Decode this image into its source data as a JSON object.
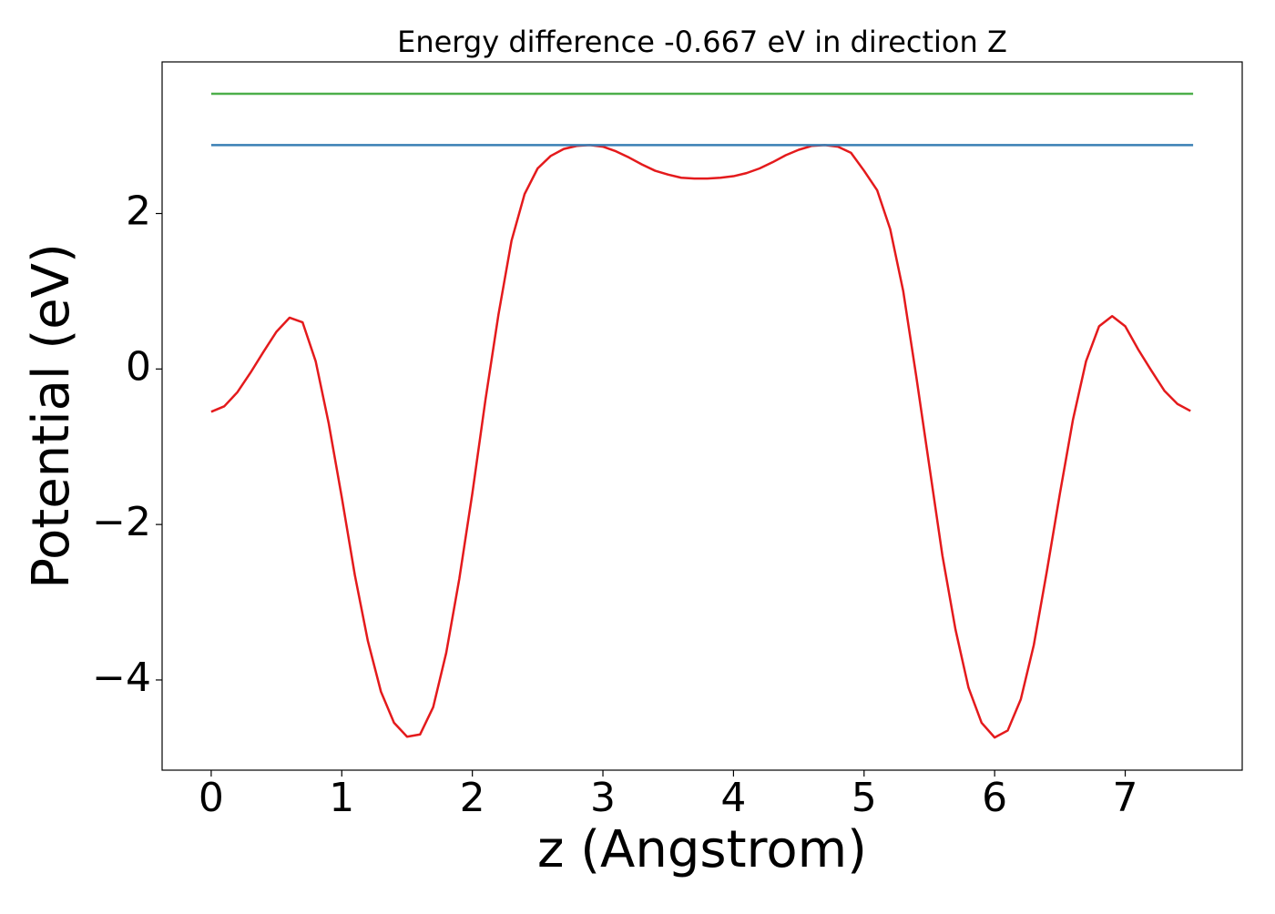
{
  "chart_data": {
    "type": "line",
    "title": "Energy difference -0.667 eV in direction Z",
    "xlabel": "z (Angstrom)",
    "ylabel": "Potential (eV)",
    "xlim": [
      -0.376,
      7.896
    ],
    "ylim": [
      -5.16,
      3.95
    ],
    "xticks": [
      0,
      1,
      2,
      3,
      4,
      5,
      6,
      7
    ],
    "yticks": [
      {
        "value": -4,
        "label": "−4"
      },
      {
        "value": -2,
        "label": "−2"
      },
      0,
      2
    ],
    "series": [
      {
        "color": "#e41a1c",
        "x": [
          0,
          0.1,
          0.2,
          0.3,
          0.4,
          0.5,
          0.6,
          0.7,
          0.8,
          0.9,
          1.0,
          1.1,
          1.2,
          1.3,
          1.4,
          1.5,
          1.6,
          1.7,
          1.8,
          1.9,
          2.0,
          2.1,
          2.2,
          2.3,
          2.4,
          2.5,
          2.6,
          2.7,
          2.8,
          2.9,
          3.0,
          3.1,
          3.2,
          3.3,
          3.4,
          3.5,
          3.6,
          3.7,
          3.8,
          3.9,
          4.0,
          4.1,
          4.2,
          4.3,
          4.4,
          4.5,
          4.6,
          4.7,
          4.8,
          4.9,
          5.0,
          5.1,
          5.2,
          5.3,
          5.4,
          5.5,
          5.6,
          5.7,
          5.8,
          5.9,
          6.0,
          6.1,
          6.2,
          6.3,
          6.4,
          6.5,
          6.6,
          6.7,
          6.8,
          6.9,
          7.0,
          7.1,
          7.2,
          7.3,
          7.4,
          7.5
        ],
        "values": [
          -0.55,
          -0.48,
          -0.3,
          -0.05,
          0.22,
          0.48,
          0.66,
          0.6,
          0.1,
          -0.7,
          -1.65,
          -2.65,
          -3.5,
          -4.15,
          -4.55,
          -4.73,
          -4.7,
          -4.35,
          -3.65,
          -2.7,
          -1.6,
          -0.4,
          0.7,
          1.65,
          2.25,
          2.58,
          2.74,
          2.83,
          2.87,
          2.88,
          2.86,
          2.8,
          2.72,
          2.63,
          2.55,
          2.5,
          2.46,
          2.45,
          2.45,
          2.46,
          2.48,
          2.52,
          2.58,
          2.66,
          2.75,
          2.82,
          2.87,
          2.88,
          2.86,
          2.78,
          2.55,
          2.3,
          1.8,
          1.0,
          -0.1,
          -1.25,
          -2.4,
          -3.35,
          -4.1,
          -4.55,
          -4.74,
          -4.65,
          -4.25,
          -3.55,
          -2.6,
          -1.6,
          -0.65,
          0.1,
          0.55,
          0.68,
          0.55,
          0.25,
          -0.02,
          -0.28,
          -0.45,
          -0.54
        ]
      },
      {
        "color": "#3a7fb5",
        "x": [
          0,
          7.52
        ],
        "values": [
          2.88,
          2.88
        ]
      },
      {
        "color": "#4daf4a",
        "x": [
          0,
          7.52
        ],
        "values": [
          3.54,
          3.54
        ]
      }
    ]
  }
}
